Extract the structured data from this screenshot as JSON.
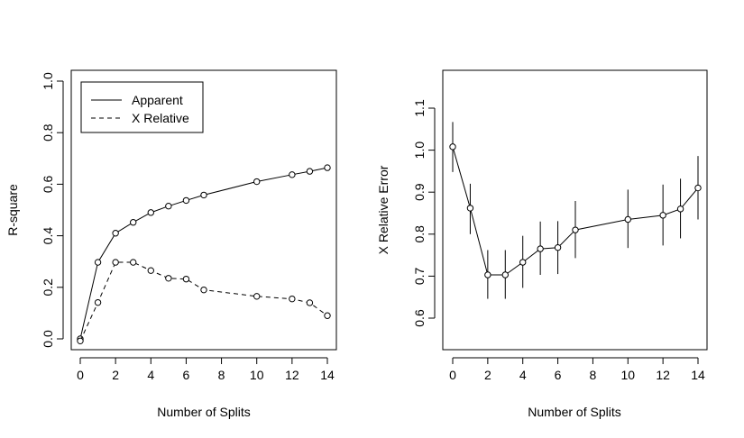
{
  "chart_data": [
    {
      "type": "line",
      "xlabel": "Number of Splits",
      "ylabel": "R-square",
      "xlim": [
        0,
        14
      ],
      "ylim": [
        0,
        1
      ],
      "x_ticks": [
        0,
        2,
        4,
        6,
        8,
        10,
        12,
        14
      ],
      "y_ticks": [
        0.0,
        0.2,
        0.4,
        0.6,
        0.8,
        1.0
      ],
      "y_tick_labels": [
        "0.0",
        "0.2",
        "0.4",
        "0.6",
        "0.8",
        "1.0"
      ],
      "legend": {
        "position": "top-left"
      },
      "x": [
        0,
        1,
        2,
        3,
        4,
        5,
        6,
        7,
        10,
        12,
        13,
        14
      ],
      "series": [
        {
          "name": "Apparent",
          "line_style": "solid",
          "values": [
            0.0,
            0.297,
            0.41,
            0.452,
            0.49,
            0.515,
            0.537,
            0.558,
            0.61,
            0.637,
            0.65,
            0.664
          ]
        },
        {
          "name": "X Relative",
          "line_style": "dashed",
          "values": [
            -0.008,
            0.141,
            0.297,
            0.297,
            0.265,
            0.235,
            0.232,
            0.19,
            0.165,
            0.155,
            0.14,
            0.09
          ]
        }
      ]
    },
    {
      "type": "line",
      "xlabel": "Number of Splits",
      "ylabel": "X Relative Error",
      "xlim": [
        0,
        14
      ],
      "ylim": [
        0.55,
        1.15
      ],
      "x_ticks": [
        0,
        2,
        4,
        6,
        8,
        10,
        12,
        14
      ],
      "y_ticks": [
        0.6,
        0.7,
        0.8,
        0.9,
        1.0,
        1.1
      ],
      "y_tick_labels": [
        "0.6",
        "0.7",
        "0.8",
        "0.9",
        "1.0",
        "1.1"
      ],
      "x": [
        0,
        1,
        2,
        3,
        4,
        5,
        6,
        7,
        10,
        12,
        13,
        14
      ],
      "series": [
        {
          "line_style": "solid",
          "values": [
            1.008,
            0.862,
            0.703,
            0.703,
            0.733,
            0.765,
            0.768,
            0.81,
            0.835,
            0.845,
            0.86,
            0.91
          ],
          "error_low": [
            0.948,
            0.8,
            0.646,
            0.646,
            0.672,
            0.703,
            0.705,
            0.743,
            0.767,
            0.773,
            0.79,
            0.835
          ],
          "error_high": [
            1.067,
            0.92,
            0.762,
            0.762,
            0.796,
            0.83,
            0.831,
            0.879,
            0.906,
            0.918,
            0.932,
            0.986
          ]
        }
      ]
    }
  ]
}
